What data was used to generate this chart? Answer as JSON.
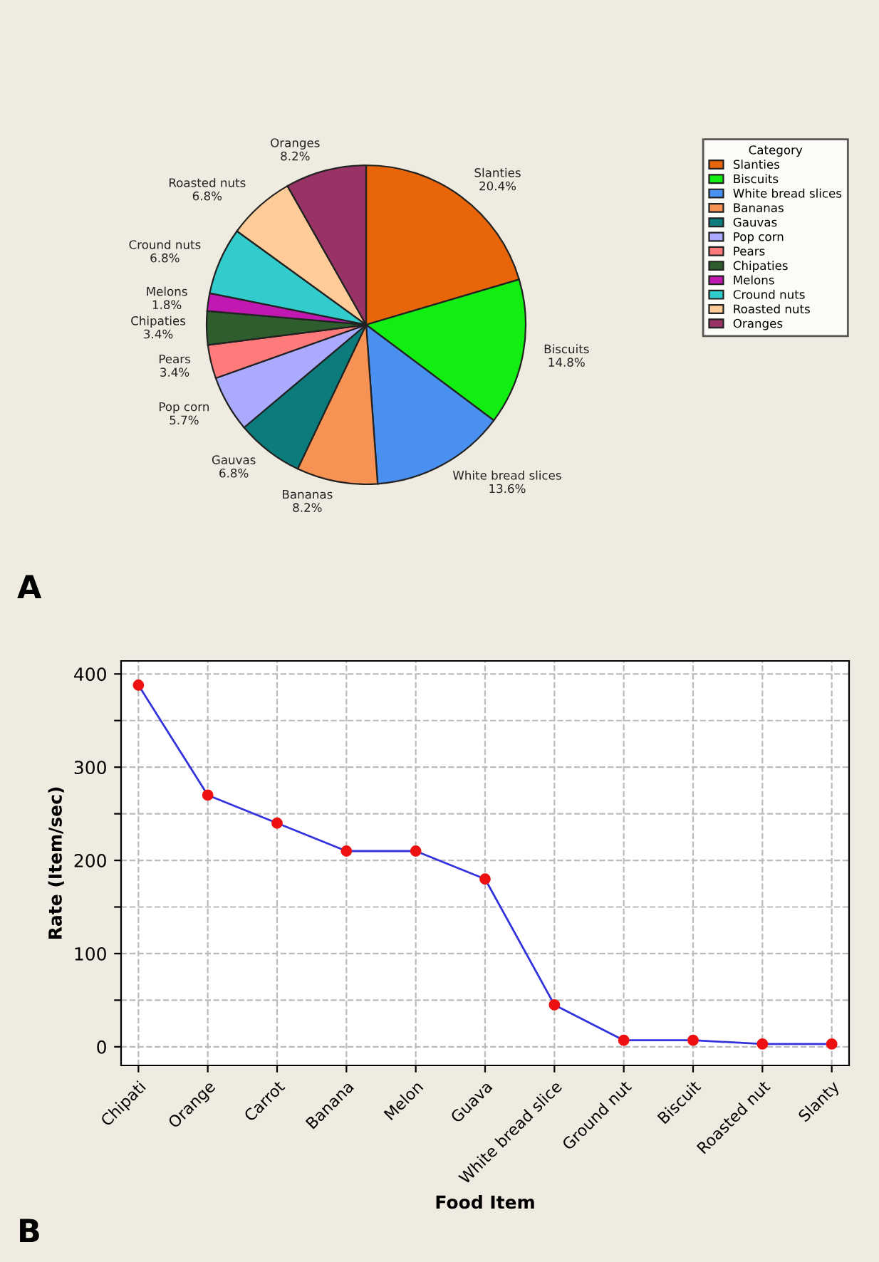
{
  "chart_data": [
    {
      "type": "pie",
      "legend_title": "Category",
      "legend": "top right",
      "annotations": [
        "A"
      ],
      "categories": [
        "Slanties",
        "Biscuits",
        "White bread slices",
        "Bananas",
        "Gauvas",
        "Pop corn",
        "Pears",
        "Chipaties",
        "Melons",
        "Cround nuts",
        "Roasted nuts",
        "Oranges"
      ],
      "values": [
        20.4,
        14.8,
        13.6,
        8.2,
        6.8,
        5.7,
        3.4,
        3.4,
        1.8,
        6.8,
        6.8,
        8.2
      ],
      "value_labels": [
        "20.4%",
        "14.8%",
        "13.6%",
        "8.2%",
        "6.8%",
        "5.7%",
        "3.4%",
        "3.4%",
        "1.8%",
        "6.8%",
        "6.8%",
        "8.2%"
      ],
      "colors": [
        "#e8650a",
        "#12ee12",
        "#4a90f0",
        "#f79255",
        "#0b7b7b",
        "#aaaaff",
        "#ff7b7b",
        "#2e5e2e",
        "#c018b0",
        "#33cccc",
        "#ffcc99",
        "#993366"
      ]
    },
    {
      "type": "line",
      "xlabel": "Food Item",
      "ylabel": "Rate (Item/sec)",
      "annotations": [
        "B"
      ],
      "categories": [
        "Chipati",
        "Orange",
        "Carrot",
        "Banana",
        "Melon",
        "Guava",
        "White bread slice",
        "Ground nut",
        "Biscuit",
        "Roasted nut",
        "Slanty"
      ],
      "series": [
        {
          "color": "#3333dd",
          "colors": [
            "#ee1111",
            "#ee1111",
            "#ee1111",
            "#ee1111",
            "#ee1111",
            "#ee1111",
            "#ee1111",
            "#ee1111",
            "#ee1111",
            "#ee1111",
            "#ee1111"
          ],
          "values": [
            388,
            270,
            240,
            210,
            210,
            180,
            45,
            7,
            7,
            3,
            3
          ]
        }
      ],
      "marker": "circle",
      "line_style": "solid",
      "grid": true,
      "legend": false,
      "ylim": [
        -20,
        414
      ],
      "yticks": [
        0,
        {
          "value": 50,
          "label": null
        },
        100,
        {
          "value": 150,
          "label": null
        },
        200,
        {
          "value": 250,
          "label": null
        },
        300,
        {
          "value": 350,
          "label": null
        },
        400
      ]
    }
  ]
}
